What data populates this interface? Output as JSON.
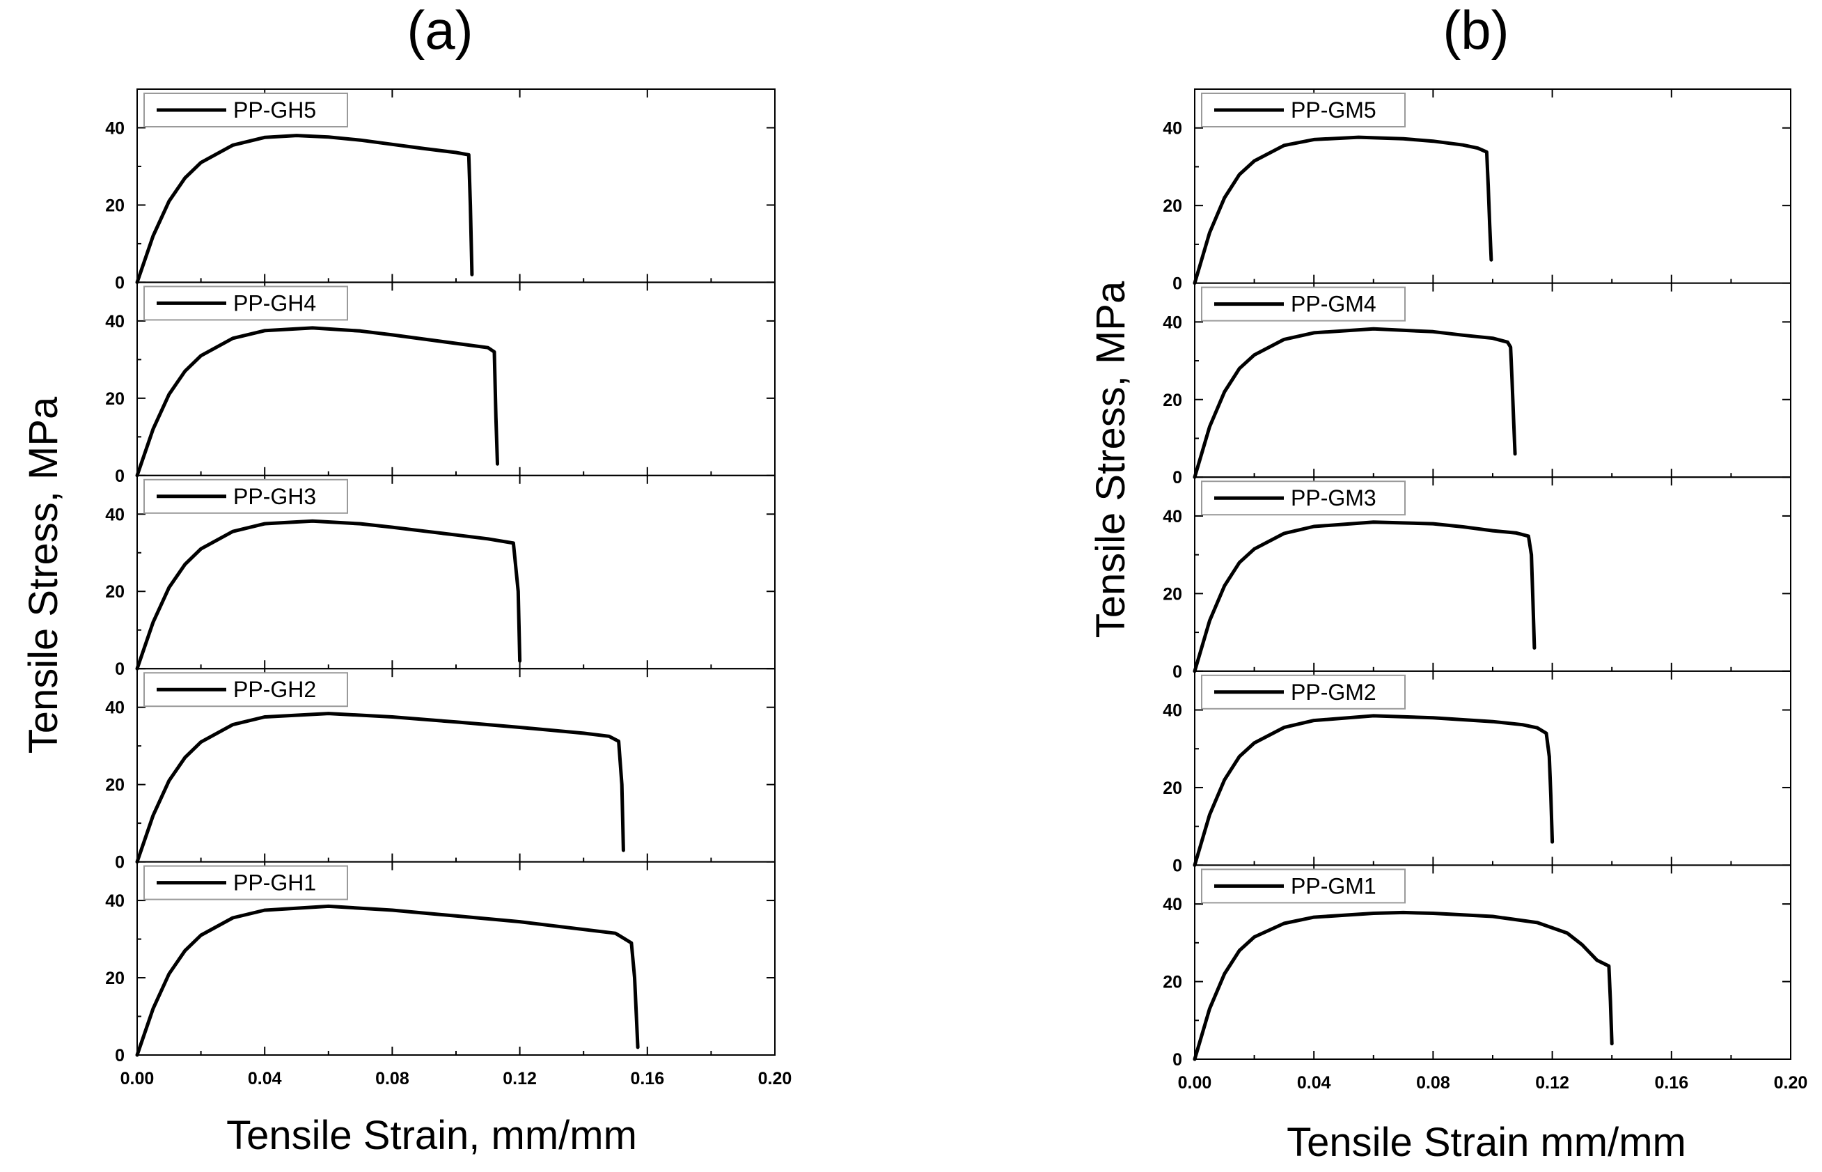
{
  "chart_data": [
    {
      "type": "line",
      "panel_label": "(a)",
      "xlabel": "Tensile Strain, mm/mm",
      "ylabel": "Tensile Stress, MPa",
      "xlim": [
        0,
        0.2
      ],
      "xticks": [
        "0.00",
        "0.04",
        "0.08",
        "0.12",
        "0.16",
        "0.20"
      ],
      "ylim": [
        0,
        50
      ],
      "yticks": [
        "0",
        "20",
        "40"
      ],
      "legend_position": "top-left",
      "series": [
        {
          "name": "PP-GH5",
          "x": [
            0,
            0.005,
            0.01,
            0.015,
            0.02,
            0.03,
            0.04,
            0.05,
            0.06,
            0.07,
            0.08,
            0.09,
            0.1,
            0.104,
            0.1045,
            0.105
          ],
          "y": [
            0,
            12,
            21,
            27,
            31,
            35.5,
            37.5,
            38,
            37.6,
            36.8,
            35.7,
            34.6,
            33.6,
            33,
            20,
            2
          ]
        },
        {
          "name": "PP-GH4",
          "x": [
            0,
            0.005,
            0.01,
            0.015,
            0.02,
            0.03,
            0.04,
            0.055,
            0.07,
            0.08,
            0.09,
            0.1,
            0.11,
            0.112,
            0.1125,
            0.113
          ],
          "y": [
            0,
            12,
            21,
            27,
            31,
            35.5,
            37.5,
            38.2,
            37.4,
            36.4,
            35.3,
            34.2,
            33.1,
            32,
            15,
            3
          ]
        },
        {
          "name": "PP-GH3",
          "x": [
            0,
            0.005,
            0.01,
            0.015,
            0.02,
            0.03,
            0.04,
            0.055,
            0.07,
            0.08,
            0.09,
            0.1,
            0.11,
            0.118,
            0.1195,
            0.12
          ],
          "y": [
            0,
            12,
            21,
            27,
            31,
            35.5,
            37.5,
            38.2,
            37.5,
            36.6,
            35.6,
            34.6,
            33.6,
            32.5,
            20,
            2
          ]
        },
        {
          "name": "PP-GH2",
          "x": [
            0,
            0.005,
            0.01,
            0.015,
            0.02,
            0.03,
            0.04,
            0.06,
            0.08,
            0.1,
            0.12,
            0.14,
            0.148,
            0.151,
            0.152,
            0.1525
          ],
          "y": [
            0,
            12,
            21,
            27,
            31,
            35.5,
            37.5,
            38.4,
            37.5,
            36.2,
            34.8,
            33.3,
            32.5,
            31.2,
            20,
            3
          ]
        },
        {
          "name": "PP-GH1",
          "x": [
            0,
            0.005,
            0.01,
            0.015,
            0.02,
            0.03,
            0.04,
            0.06,
            0.08,
            0.1,
            0.12,
            0.14,
            0.15,
            0.155,
            0.156,
            0.157
          ],
          "y": [
            0,
            12,
            21,
            27,
            31,
            35.5,
            37.5,
            38.5,
            37.5,
            36,
            34.5,
            32.5,
            31.5,
            29,
            20,
            2
          ]
        }
      ]
    },
    {
      "type": "line",
      "panel_label": "(b)",
      "xlabel": "Tensile Strain mm/mm",
      "ylabel": "Tensile Stress, MPa",
      "xlim": [
        0,
        0.2
      ],
      "xticks": [
        "0.00",
        "0.04",
        "0.08",
        "0.12",
        "0.16",
        "0.20"
      ],
      "ylim": [
        0,
        50
      ],
      "yticks": [
        "0",
        "20",
        "40"
      ],
      "legend_position": "top-left",
      "series": [
        {
          "name": "PP-GM5",
          "x": [
            0,
            0.005,
            0.01,
            0.015,
            0.02,
            0.03,
            0.04,
            0.055,
            0.07,
            0.08,
            0.09,
            0.095,
            0.098,
            0.0985,
            0.099,
            0.0995
          ],
          "y": [
            0,
            13,
            22,
            28,
            31.5,
            35.5,
            37,
            37.6,
            37.2,
            36.6,
            35.6,
            34.8,
            33.8,
            25,
            15,
            6
          ]
        },
        {
          "name": "PP-GM4",
          "x": [
            0,
            0.005,
            0.01,
            0.015,
            0.02,
            0.03,
            0.04,
            0.06,
            0.08,
            0.09,
            0.1,
            0.105,
            0.106,
            0.1065,
            0.107,
            0.1075
          ],
          "y": [
            0,
            13,
            22,
            28,
            31.5,
            35.5,
            37.2,
            38.2,
            37.5,
            36.6,
            35.8,
            34.8,
            33.5,
            25,
            15,
            6
          ]
        },
        {
          "name": "PP-GM3",
          "x": [
            0,
            0.005,
            0.01,
            0.015,
            0.02,
            0.03,
            0.04,
            0.06,
            0.08,
            0.09,
            0.1,
            0.108,
            0.112,
            0.113,
            0.1135,
            0.114
          ],
          "y": [
            0,
            13,
            22,
            28,
            31.5,
            35.5,
            37.3,
            38.4,
            38,
            37.2,
            36.2,
            35.6,
            34.8,
            30,
            18,
            6
          ]
        },
        {
          "name": "PP-GM2",
          "x": [
            0,
            0.005,
            0.01,
            0.015,
            0.02,
            0.03,
            0.04,
            0.06,
            0.08,
            0.1,
            0.11,
            0.115,
            0.118,
            0.119,
            0.1195,
            0.12
          ],
          "y": [
            0,
            13,
            22,
            28,
            31.5,
            35.5,
            37.3,
            38.5,
            38,
            37,
            36.2,
            35.4,
            34,
            28,
            18,
            6
          ]
        },
        {
          "name": "PP-GM1",
          "x": [
            0,
            0.005,
            0.01,
            0.015,
            0.02,
            0.03,
            0.04,
            0.06,
            0.07,
            0.08,
            0.1,
            0.115,
            0.125,
            0.13,
            0.135,
            0.139,
            0.1395,
            0.14
          ],
          "y": [
            0,
            13,
            22,
            28,
            31.5,
            35,
            36.6,
            37.6,
            37.8,
            37.6,
            36.8,
            35.2,
            32.5,
            29.5,
            25.5,
            24,
            15,
            4
          ]
        }
      ]
    }
  ]
}
